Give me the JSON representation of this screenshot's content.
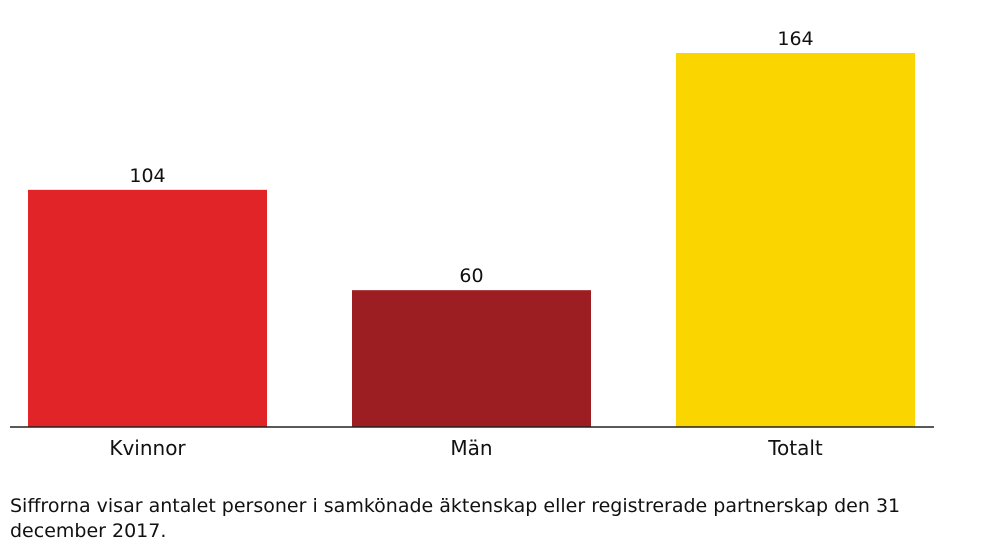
{
  "chart_data": {
    "type": "bar",
    "categories": [
      "Kvinnor",
      "Män",
      "Totalt"
    ],
    "values": [
      104,
      60,
      164
    ],
    "colors": [
      "#e02427",
      "#9c1d22",
      "#fbd500"
    ],
    "value_labels": [
      "104",
      "60",
      "164"
    ],
    "ylim": [
      0,
      164
    ],
    "grid": false,
    "legend": "none"
  },
  "footnote": "Siffrorna visar antalet personer i samkönade äktenskap eller registrerade partnerskap den 31 december 2017."
}
